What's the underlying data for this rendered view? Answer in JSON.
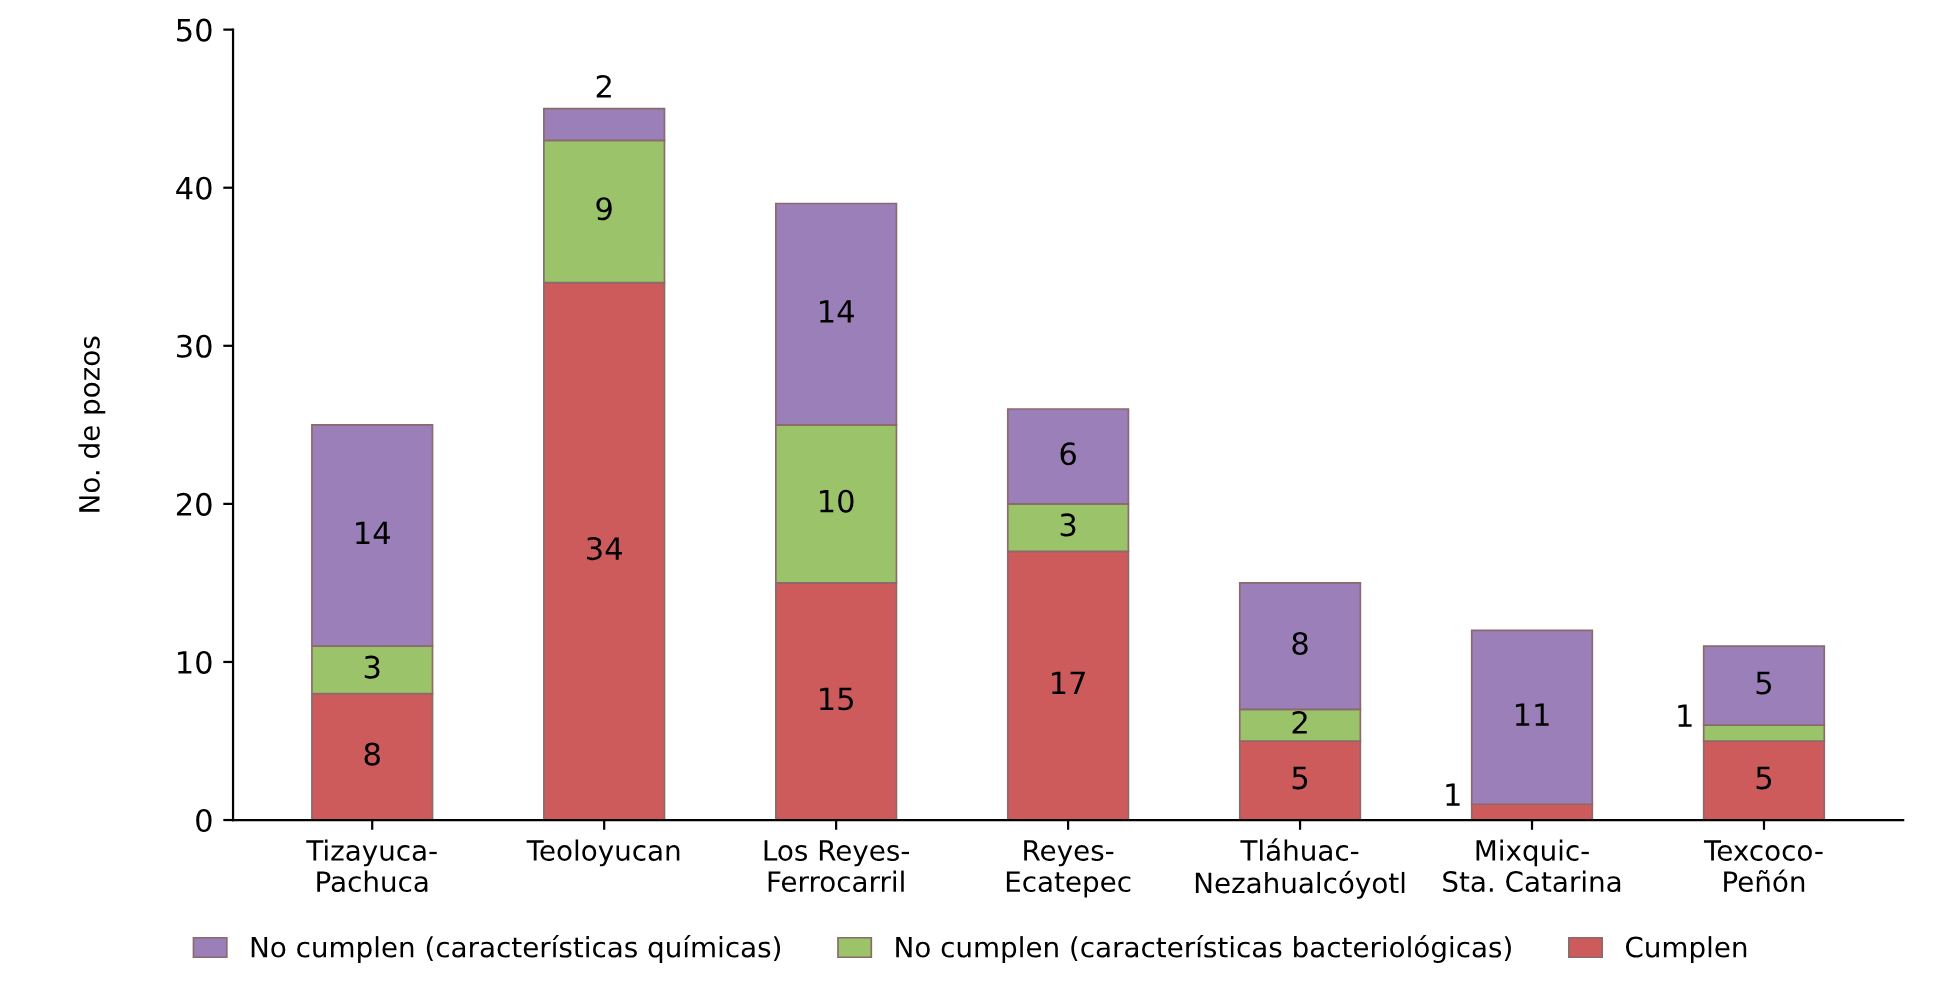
{
  "chart_data": {
    "type": "bar",
    "stacked": true,
    "ylabel": "No. de pozos",
    "categories": [
      "Tizayuca-\nPachuca",
      "Teoloyucan",
      "Los Reyes-\nFerrocarril",
      "Reyes-\nEcatepec",
      "Tláhuac-\nNezahualcóyotl",
      "Mixquic-\nSta. Catarina",
      "Texcoco-\nPeñón"
    ],
    "series": [
      {
        "name": "Cumplen",
        "color": "#cd5b5b",
        "values": [
          8,
          34,
          15,
          17,
          5,
          1,
          5
        ],
        "value_labels": [
          "8",
          "34",
          "15",
          "17",
          "5",
          "1",
          "5"
        ]
      },
      {
        "name": "No cumplen (características bacteriológicas)",
        "color": "#9bc46a",
        "values": [
          3,
          9,
          10,
          3,
          2,
          0,
          1
        ],
        "value_labels": [
          "3",
          "9",
          "10",
          "3",
          "2",
          null,
          "1"
        ]
      },
      {
        "name": "No cumplen (características químicas)",
        "color": "#9b7fb8",
        "values": [
          14,
          2,
          14,
          6,
          8,
          11,
          5
        ],
        "value_labels": [
          "14",
          "2",
          "14",
          "6",
          "8",
          "11",
          "5"
        ]
      }
    ],
    "ylim": [
      0,
      50
    ],
    "yticks": [
      0,
      10,
      20,
      30,
      40,
      50
    ],
    "grid": false,
    "legend": "bottom"
  }
}
